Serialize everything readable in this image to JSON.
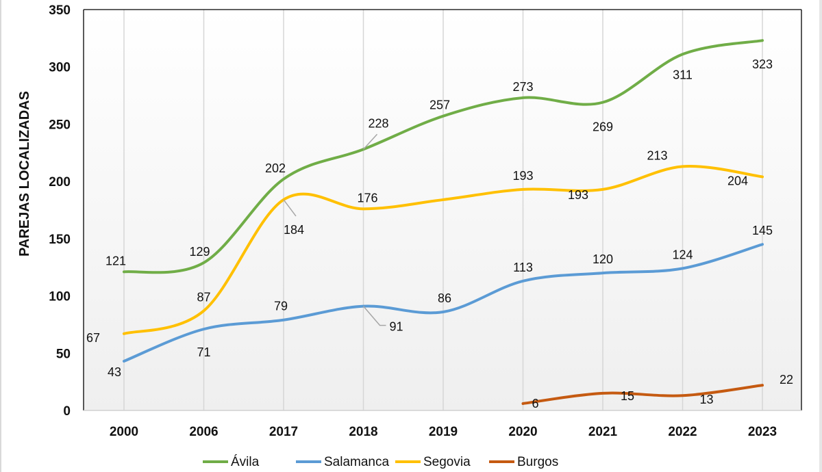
{
  "chart_data": {
    "type": "line",
    "title": "",
    "xlabel": "",
    "ylabel": "PAREJAS LOCALIZADAS",
    "ylim": [
      0,
      350
    ],
    "yticks": [
      0,
      50,
      100,
      150,
      200,
      250,
      300,
      350
    ],
    "categories": [
      "2000",
      "2006",
      "2017",
      "2018",
      "2019",
      "2020",
      "2021",
      "2022",
      "2023"
    ],
    "grid": "vertical",
    "smooth": true,
    "legend_position": "bottom",
    "series": [
      {
        "name": "Ávila",
        "color": "#70ad47",
        "values": [
          121,
          129,
          202,
          228,
          257,
          273,
          269,
          311,
          323
        ]
      },
      {
        "name": "Salamanca",
        "color": "#5b9bd5",
        "values": [
          43,
          71,
          79,
          91,
          86,
          113,
          120,
          124,
          145
        ]
      },
      {
        "name": "Segovia",
        "color": "#ffc000",
        "values": [
          67,
          87,
          184,
          176,
          184,
          193,
          193,
          213,
          204
        ]
      },
      {
        "name": "Burgos",
        "color": "#c55a11",
        "values": [
          null,
          null,
          null,
          null,
          null,
          6,
          15,
          13,
          22
        ]
      }
    ],
    "data_labels": [
      {
        "series": "Ávila",
        "labels": [
          "121",
          "129",
          "202",
          "228",
          "257",
          "273",
          "269",
          "311",
          "323"
        ]
      },
      {
        "series": "Salamanca",
        "labels": [
          "43",
          "71",
          "79",
          "91",
          "86",
          "113",
          "120",
          "124",
          "145"
        ]
      },
      {
        "series": "Segovia",
        "labels": [
          "67",
          "87",
          "184",
          "176",
          null,
          "193",
          "193",
          "213",
          "204"
        ]
      },
      {
        "series": "Burgos",
        "labels": [
          null,
          null,
          null,
          null,
          null,
          "6",
          "15",
          "13",
          "22"
        ]
      }
    ]
  }
}
